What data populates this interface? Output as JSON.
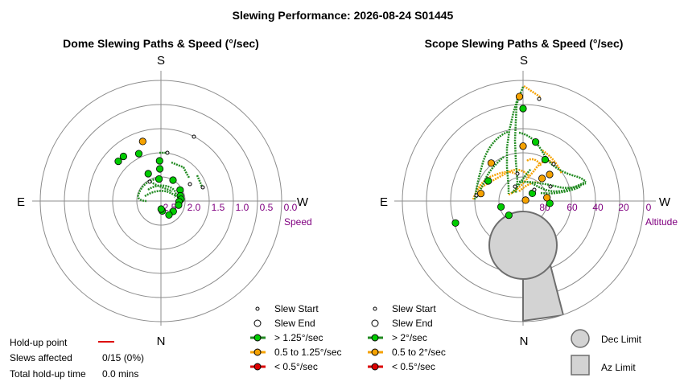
{
  "title": "Slewing Performance: 2026-08-24 S01445",
  "colors": {
    "green": "#00cc00",
    "green_line": "#228B22",
    "orange": "#f5a200",
    "red": "#dd0000",
    "purple": "#800080",
    "grid": "#8c8c8c",
    "limit_fill": "#d3d3d3",
    "limit_stroke": "#6e6e6e"
  },
  "dome": {
    "title": "Dome Slewing Paths & Speed (°/sec)",
    "compass": {
      "top": "S",
      "bottom": "N",
      "left": "E",
      "right": "W"
    },
    "axis_name": "Speed",
    "rings": [
      "2.5",
      "2.0",
      "1.5",
      "1.0",
      "0.5",
      "0.0"
    ],
    "legend": {
      "start": "Slew Start",
      "end": "Slew End",
      "fast": "> 1.25°/sec",
      "mid": "0.5 to 1.25°/sec",
      "slow": "< 0.5°/sec"
    }
  },
  "scope": {
    "title": "Scope Slewing Paths & Speed (°/sec)",
    "compass": {
      "top": "S",
      "bottom": "N",
      "left": "E",
      "right": "W"
    },
    "axis_name": "Altitude",
    "rings": [
      "80",
      "60",
      "40",
      "20",
      "0"
    ],
    "legend": {
      "start": "Slew Start",
      "end": "Slew End",
      "fast": "> 2°/sec",
      "mid": "0.5 to 2°/sec",
      "slow": "< 0.5°/sec"
    },
    "limits": {
      "dec": "Dec Limit",
      "az": "Az Limit"
    }
  },
  "holdup": {
    "point_label": "Hold-up point",
    "slews_label": "Slews affected",
    "slews_value": "0/15 (0%)",
    "total_label": "Total hold-up time",
    "total_value": "0.0 mins"
  },
  "chart_data": [
    {
      "type": "scatter",
      "title": "Dome Slewing Paths & Speed (°/sec)",
      "coordinate": "polar",
      "radial_axis": "Speed",
      "radial_ticks": [
        2.5,
        2.0,
        1.5,
        1.0,
        0.5,
        0.0
      ],
      "radial_range": [
        3.0,
        0.0
      ],
      "series": [
        {
          "name": "> 1.25°/sec",
          "color": "#00cc00",
          "points": [
            {
              "az": 178,
              "r": 2.0
            },
            {
              "az": 178,
              "r": 2.2
            },
            {
              "az": 155,
              "r": 1.7
            },
            {
              "az": 140,
              "r": 1.55
            },
            {
              "az": 133,
              "r": 1.55
            },
            {
              "az": 155,
              "r": 2.25
            },
            {
              "az": 175,
              "r": 2.45
            },
            {
              "az": 210,
              "r": 2.4
            },
            {
              "az": 240,
              "r": 2.45
            },
            {
              "az": 255,
              "r": 2.5
            },
            {
              "az": 265,
              "r": 2.5
            },
            {
              "az": 272,
              "r": 2.55
            },
            {
              "az": 283,
              "r": 2.55
            },
            {
              "az": 310,
              "r": 2.6
            },
            {
              "az": 330,
              "r": 2.6
            },
            {
              "az": 352,
              "r": 2.75
            },
            {
              "az": 358,
              "r": 2.8
            }
          ]
        },
        {
          "name": "0.5 to 1.25°/sec",
          "color": "#f5a200",
          "points": [
            {
              "az": 163,
              "r": 1.45
            }
          ]
        }
      ]
    },
    {
      "type": "scatter",
      "title": "Scope Slewing Paths & Speed (°/sec)",
      "coordinate": "polar",
      "radial_axis": "Altitude",
      "radial_ticks": [
        80,
        60,
        40,
        20,
        0
      ],
      "radial_range": [
        90,
        0
      ],
      "series": [
        {
          "name": "> 2°/sec",
          "color": "#00cc00",
          "points": [
            {
              "az": 180,
              "alt": 21
            },
            {
              "az": 192,
              "alt": 45
            },
            {
              "az": 208,
              "alt": 55
            },
            {
              "az": 120,
              "alt": 60
            },
            {
              "az": 72,
              "alt": 37
            },
            {
              "az": 45,
              "alt": 75
            },
            {
              "az": 75,
              "alt": 73
            },
            {
              "az": 275,
              "alt": 70
            },
            {
              "az": 230,
              "alt": 81
            }
          ]
        },
        {
          "name": "0.5 to 2°/sec",
          "color": "#f5a200",
          "points": [
            {
              "az": 178,
              "alt": 12
            },
            {
              "az": 140,
              "alt": 53
            },
            {
              "az": 180,
              "alt": 49
            },
            {
              "az": 250,
              "alt": 88
            },
            {
              "az": 262,
              "alt": 72
            },
            {
              "az": 220,
              "alt": 68
            },
            {
              "az": 225,
              "alt": 62
            },
            {
              "az": 100,
              "alt": 58
            }
          ]
        }
      ]
    }
  ]
}
